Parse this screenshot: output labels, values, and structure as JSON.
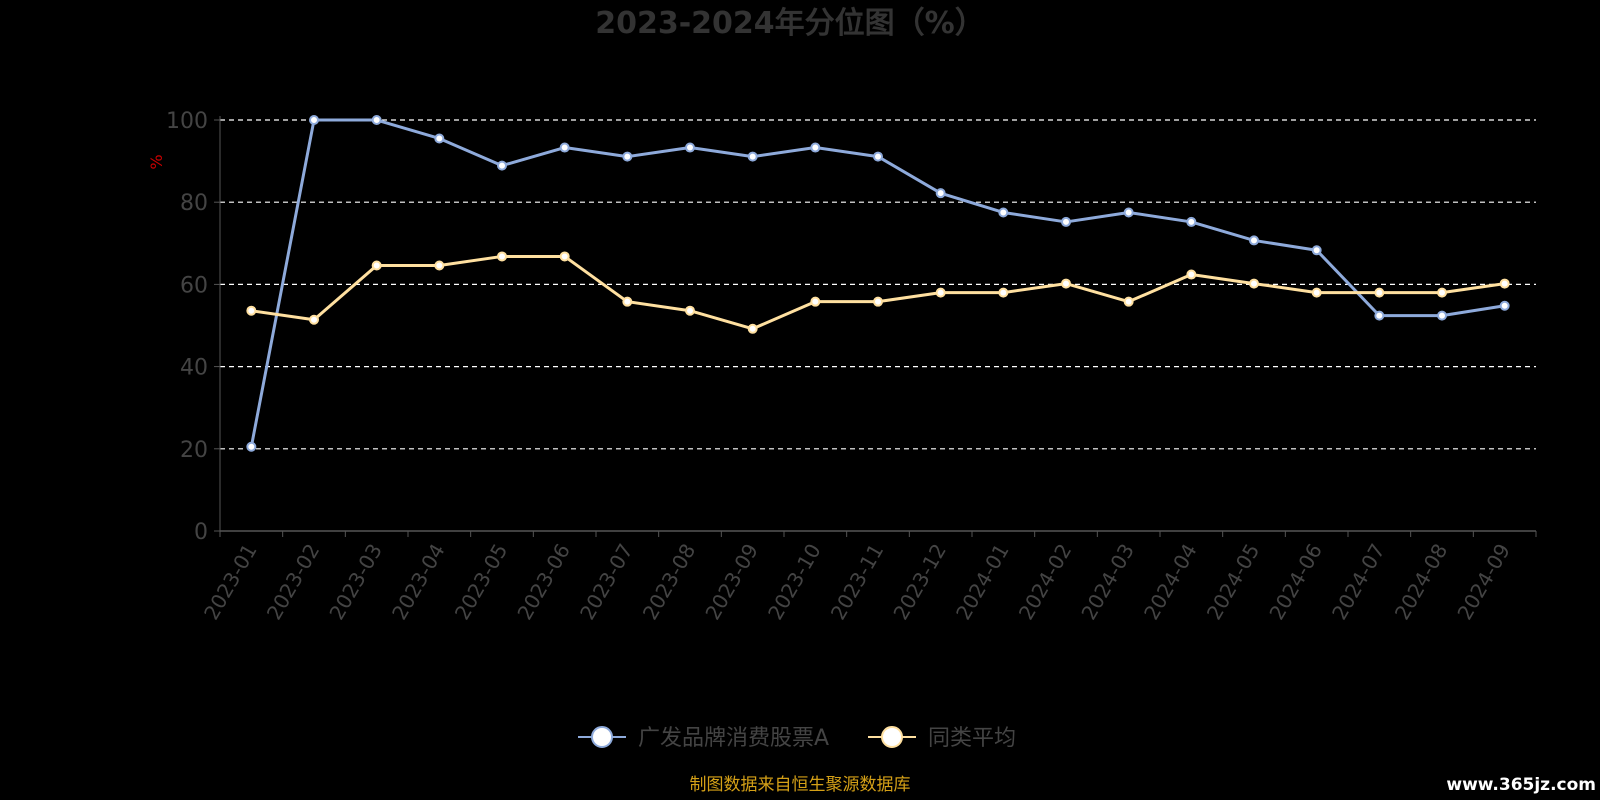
{
  "title": "2023-2024年分位图（%）",
  "source_note": "制图数据来自恒生聚源数据库",
  "watermark": "www.365jz.com",
  "chart_data": {
    "type": "line",
    "title": "2023-2024年分位图（%）",
    "ylabel": "%",
    "xlabel": "",
    "ylim": [
      0,
      100
    ],
    "yticks": [
      0,
      20,
      40,
      60,
      80,
      100
    ],
    "grid": true,
    "legend_position": "bottom-center",
    "categories": [
      "2023-01",
      "2023-02",
      "2023-03",
      "2023-04",
      "2023-05",
      "2023-06",
      "2023-07",
      "2023-08",
      "2023-09",
      "2023-10",
      "2023-11",
      "2023-12",
      "2024-01",
      "2024-02",
      "2024-03",
      "2024-04",
      "2024-05",
      "2024-06",
      "2024-07",
      "2024-08",
      "2024-09"
    ],
    "series": [
      {
        "name": "广发品牌消费股票A",
        "color": "#8eaadb",
        "values": [
          20.5,
          100,
          100,
          95.5,
          88.9,
          93.3,
          91.1,
          93.3,
          91.1,
          93.3,
          91.1,
          82.2,
          77.5,
          75.2,
          77.5,
          75.2,
          70.7,
          68.3,
          52.4,
          52.4,
          54.8
        ]
      },
      {
        "name": "同类平均",
        "color": "#ffe0a0",
        "values": [
          53.6,
          51.4,
          64.6,
          64.6,
          66.8,
          66.8,
          55.8,
          53.6,
          49.2,
          55.8,
          55.8,
          58.0,
          58.0,
          60.2,
          55.8,
          62.4,
          60.2,
          58.0,
          58.0,
          58.0,
          60.2
        ]
      }
    ]
  }
}
